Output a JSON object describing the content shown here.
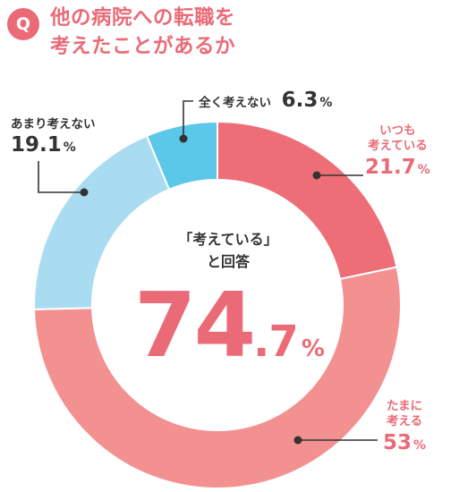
{
  "question": {
    "badge": "Q",
    "title_line1": "他の病院への転職を",
    "title_line2": "考えたことがあるか"
  },
  "colors": {
    "accent": "#ea6b77",
    "text_dark": "#333333",
    "leader": "#333333"
  },
  "center": {
    "caption_line1": "「考えている」",
    "caption_line2": "と回答",
    "value_int": "74",
    "value_dec": ".7",
    "value_unit": "%"
  },
  "chart_data": {
    "type": "pie",
    "donut": true,
    "slices": [
      {
        "label": "いつも考えている",
        "label_line1": "いつも",
        "label_line2": "考えている",
        "value": 21.7,
        "value_text": "21.7",
        "unit": "%",
        "color": "#ee6e78",
        "label_color": "#ea6b77"
      },
      {
        "label": "たまに考える",
        "label_line1": "たまに",
        "label_line2": "考える",
        "value": 53,
        "value_text": "53",
        "unit": "%",
        "color": "#f39191",
        "label_color": "#ea6b77"
      },
      {
        "label": "あまり考えない",
        "label_line1": "あまり考えない",
        "label_line2": "",
        "value": 19.1,
        "value_text": "19.1",
        "unit": "%",
        "color": "#a9dcf1",
        "label_color": "#333333"
      },
      {
        "label": "全く考えない",
        "label_line1": "全く考えない",
        "label_line2": "",
        "value": 6.3,
        "value_text": "6.3",
        "unit": "%",
        "color": "#5bc7e9",
        "label_color": "#333333"
      }
    ]
  }
}
